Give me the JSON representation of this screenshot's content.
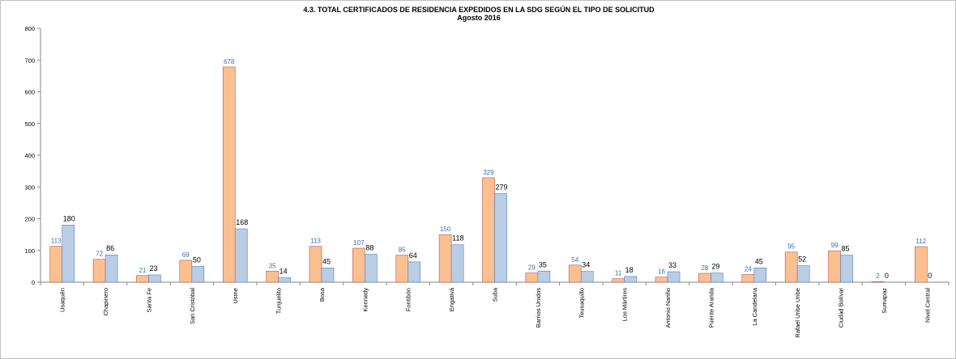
{
  "chart_data": {
    "type": "bar",
    "title": "4.3. TOTAL CERTIFICADOS DE RESIDENCIA EXPEDIDOS EN LA SDG SEGÚN EL TIPO DE SOLICITUD",
    "subtitle": "Agosto 2016",
    "xlabel": "",
    "ylabel": "",
    "ylim": [
      0,
      800
    ],
    "yticks": [
      0,
      100,
      200,
      300,
      400,
      500,
      600,
      700,
      800
    ],
    "grid": false,
    "legend": "none",
    "categories": [
      "Usaquén",
      "Chapinero",
      "Santa Fe",
      "San Cristóbal",
      "Usme",
      "Tunjuelito",
      "Bosa",
      "Kennedy",
      "Fontibón",
      "Engativá",
      "Suba",
      "Barrios Unidos",
      "Teusaquillo",
      "Los Mártires",
      "Antonio Nariño",
      "Puente Aranda",
      "La Candelaria",
      "Rafael Uribe Uribe",
      "Ciudad Bolívar",
      "Sumapaz",
      "Nivel Central"
    ],
    "series": [
      {
        "color": "#fac090",
        "stroke": "#c0504d",
        "label_color": "#2e75b6",
        "values": [
          113,
          72,
          21,
          69,
          678,
          35,
          113,
          107,
          85,
          150,
          329,
          29,
          54,
          11,
          16,
          28,
          24,
          95,
          99,
          2,
          112
        ]
      },
      {
        "color": "#b9cde5",
        "stroke": "#4f81bd",
        "label_color": "#000000",
        "values": [
          180,
          86,
          23,
          50,
          168,
          14,
          45,
          88,
          64,
          118,
          279,
          35,
          34,
          18,
          33,
          29,
          45,
          52,
          85,
          0,
          0
        ]
      }
    ]
  }
}
